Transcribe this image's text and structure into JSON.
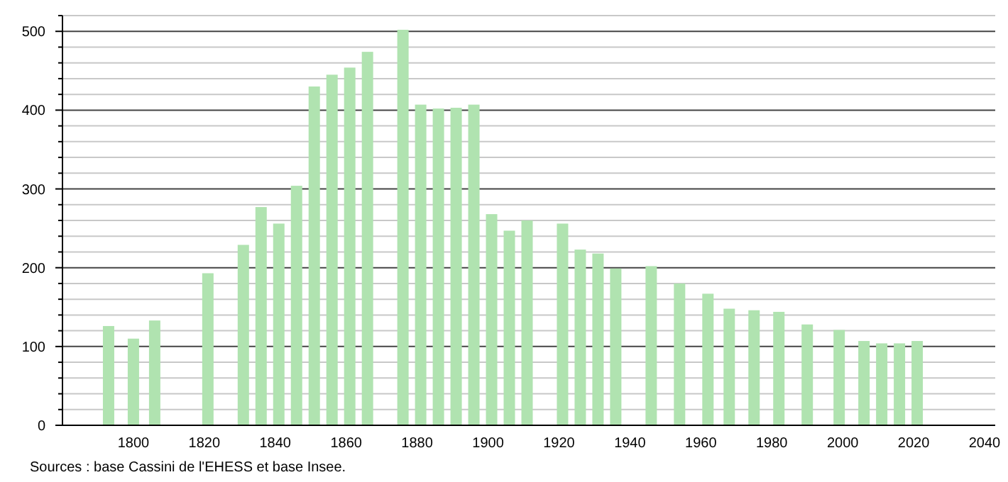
{
  "chart_data": {
    "type": "bar",
    "x": [
      1793,
      1800,
      1806,
      1821,
      1831,
      1836,
      1841,
      1846,
      1851,
      1856,
      1861,
      1866,
      1876,
      1881,
      1886,
      1891,
      1896,
      1901,
      1906,
      1911,
      1921,
      1926,
      1931,
      1936,
      1946,
      1954,
      1962,
      1968,
      1975,
      1982,
      1990,
      1999,
      2006,
      2011,
      2016,
      2021
    ],
    "values": [
      126,
      110,
      133,
      193,
      229,
      277,
      256,
      304,
      430,
      445,
      454,
      474,
      502,
      407,
      402,
      403,
      407,
      268,
      247,
      260,
      256,
      223,
      218,
      199,
      202,
      180,
      167,
      148,
      146,
      144,
      128,
      121,
      107,
      104,
      104,
      107
    ],
    "color": "#b0e3b0",
    "xlim": [
      1778,
      2043
    ],
    "xticks": [
      1800,
      1820,
      1840,
      1860,
      1880,
      1900,
      1920,
      1940,
      1960,
      1980,
      2000,
      2020,
      2040
    ],
    "ylim": [
      0,
      520
    ],
    "yticks": [
      0,
      {
        "value": 20,
        "label": null
      },
      {
        "value": 40,
        "label": null
      },
      {
        "value": 60,
        "label": null
      },
      {
        "value": 80,
        "label": null
      },
      100,
      {
        "value": 120,
        "label": null
      },
      {
        "value": 140,
        "label": null
      },
      {
        "value": 160,
        "label": null
      },
      {
        "value": 180,
        "label": null
      },
      200,
      {
        "value": 220,
        "label": null
      },
      {
        "value": 240,
        "label": null
      },
      {
        "value": 260,
        "label": null
      },
      {
        "value": 280,
        "label": null
      },
      300,
      {
        "value": 320,
        "label": null
      },
      {
        "value": 340,
        "label": null
      },
      {
        "value": 360,
        "label": null
      },
      {
        "value": 380,
        "label": null
      },
      400,
      {
        "value": 420,
        "label": null
      },
      {
        "value": 440,
        "label": null
      },
      {
        "value": 460,
        "label": null
      },
      {
        "value": 480,
        "label": null
      },
      500,
      {
        "value": 520,
        "label": null
      }
    ],
    "grid": "y",
    "annotations": [
      "Sources : base Cassini de l'EHESS et base Insee."
    ]
  }
}
